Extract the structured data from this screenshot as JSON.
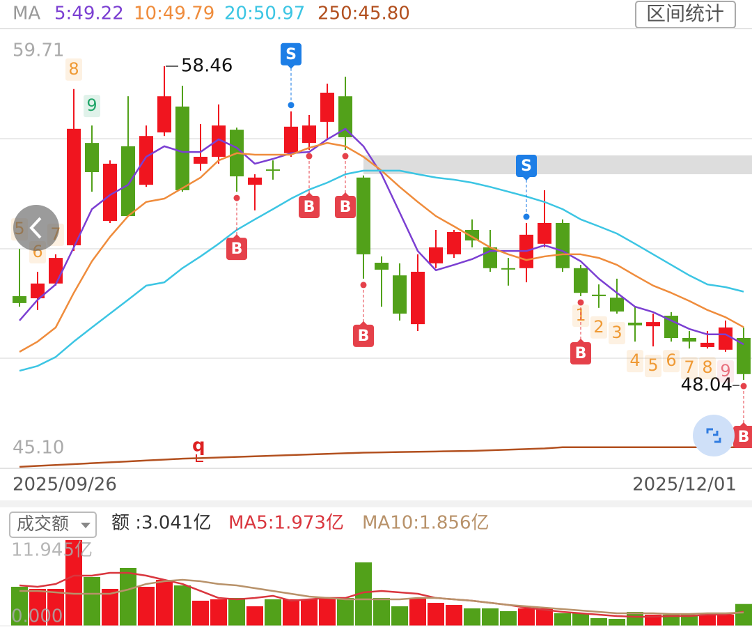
{
  "chart_data": [
    {
      "type": "candlestick",
      "legend_prefix": "MA",
      "button": "区间统计",
      "event_marker": "q",
      "categories": [
        "2025/09/26",
        null,
        null,
        null,
        null,
        null,
        null,
        null,
        null,
        null,
        null,
        null,
        null,
        null,
        null,
        null,
        null,
        null,
        null,
        null,
        null,
        null,
        null,
        null,
        null,
        null,
        null,
        null,
        null,
        null,
        null,
        null,
        null,
        null,
        null,
        null,
        null,
        null,
        null,
        null,
        "2025/12/01"
      ],
      "open": [
        50.82,
        50.75,
        51.24,
        52.51,
        55.91,
        53.32,
        55.8,
        54.52,
        56.26,
        57.12,
        55.22,
        55.45,
        56.35,
        54.52,
        55.03,
        55.57,
        55.91,
        56.61,
        57.46,
        54.76,
        51.93,
        51.51,
        49.89,
        51.91,
        52.21,
        53.02,
        52.44,
        51.75,
        51.75,
        52.56,
        53.25,
        51.75,
        50.87,
        50.77,
        49.94,
        49.82,
        50.17,
        49.43,
        49.13,
        49.04,
        49.43
      ],
      "high": [
        52.39,
        51.63,
        52.21,
        57.7,
        56.49,
        55.33,
        57.46,
        56.49,
        58.46,
        57.81,
        56.54,
        57.19,
        56.42,
        54.87,
        55.33,
        56.96,
        56.84,
        57.88,
        58.11,
        54.83,
        52.14,
        51.91,
        52.21,
        53.02,
        53.02,
        53.37,
        53.02,
        52.09,
        53.25,
        54.34,
        53.37,
        51.86,
        51.21,
        51.4,
        50.47,
        50.24,
        50.29,
        49.66,
        49.66,
        50.01,
        49.78
      ],
      "low": [
        50.47,
        50.36,
        51.17,
        52.32,
        54.29,
        53.25,
        53.48,
        54.45,
        56.14,
        54.29,
        54.99,
        55.22,
        54.29,
        53.67,
        54.69,
        55.45,
        55.68,
        56.03,
        55.68,
        51.4,
        50.47,
        50.01,
        49.66,
        51.75,
        52.09,
        52.44,
        51.63,
        51.17,
        51.28,
        52.44,
        51.63,
        50.82,
        50.43,
        50.24,
        49.31,
        49.15,
        49.31,
        49.08,
        49.08,
        48.97,
        48.04
      ],
      "close": [
        50.59,
        51.24,
        52.09,
        56.38,
        54.94,
        55.22,
        53.48,
        56.14,
        57.46,
        54.34,
        55.45,
        56.49,
        54.8,
        54.76,
        55.02,
        56.45,
        56.49,
        57.58,
        56.1,
        52.21,
        51.7,
        50.24,
        51.63,
        52.44,
        52.95,
        52.67,
        51.75,
        51.74,
        52.86,
        53.25,
        51.75,
        50.93,
        50.82,
        50.31,
        49.85,
        49.96,
        49.43,
        49.31,
        49.27,
        49.78,
        48.23
      ],
      "up_color": "#f0151f",
      "down_color": "#52a11a",
      "ylim": [
        45.1,
        59.71
      ],
      "yticks": [
        {
          "value": 45.1,
          "label": "45.10"
        },
        59.71
      ],
      "series": [
        {
          "name": "5:49.22",
          "color": "#7b3fd2",
          "values": [
            50.01,
            50.7,
            51.21,
            52.44,
            53.71,
            54.18,
            54.52,
            55.45,
            55.8,
            55.61,
            55.61,
            56.03,
            55.75,
            55.22,
            55.38,
            55.57,
            55.61,
            56.03,
            56.38,
            55.8,
            54.87,
            53.6,
            52.32,
            51.68,
            51.86,
            52.05,
            52.32,
            52.32,
            52.32,
            52.51,
            52.32,
            51.98,
            51.4,
            50.93,
            50.47,
            50.29,
            50.01,
            49.73,
            49.55,
            49.55,
            49.22
          ]
        },
        {
          "name": "10:49.79",
          "color": "#ef8c3c",
          "values": [
            48.97,
            49.31,
            49.78,
            50.93,
            51.98,
            52.79,
            53.48,
            53.95,
            54.06,
            54.41,
            54.76,
            55.33,
            55.57,
            55.52,
            55.52,
            55.52,
            55.75,
            55.91,
            55.8,
            55.45,
            54.99,
            54.45,
            53.95,
            53.48,
            53.14,
            52.79,
            52.44,
            52.21,
            52.02,
            52.14,
            52.21,
            52.21,
            52.09,
            51.86,
            51.51,
            51.17,
            50.93,
            50.66,
            50.36,
            50.12,
            49.79
          ]
        },
        {
          "name": "20:50.97",
          "color": "#3cc5e3",
          "values": [
            48.34,
            48.5,
            48.8,
            49.31,
            49.78,
            50.24,
            50.7,
            51.17,
            51.28,
            51.75,
            52.14,
            52.56,
            53.02,
            53.37,
            53.71,
            54.06,
            54.36,
            54.59,
            54.87,
            54.99,
            54.99,
            54.99,
            54.87,
            54.76,
            54.69,
            54.59,
            54.45,
            54.29,
            54.13,
            53.95,
            53.71,
            53.37,
            53.14,
            52.9,
            52.56,
            52.21,
            51.86,
            51.51,
            51.21,
            51.12,
            50.97
          ]
        },
        {
          "name": "250:45.80",
          "color": "#b2501f",
          "values": [
            45.15,
            45.18,
            45.21,
            45.24,
            45.27,
            45.3,
            45.33,
            45.36,
            45.39,
            45.42,
            45.44,
            45.46,
            45.48,
            45.5,
            45.52,
            45.54,
            45.56,
            45.58,
            45.6,
            45.62,
            45.63,
            45.64,
            45.65,
            45.66,
            45.67,
            45.68,
            45.7,
            45.72,
            45.74,
            45.76,
            45.8,
            45.8,
            45.8,
            45.8,
            45.8,
            45.8,
            45.8,
            45.8,
            45.8,
            45.8,
            45.8
          ]
        }
      ],
      "signals": [
        null,
        null,
        null,
        null,
        null,
        null,
        null,
        null,
        null,
        null,
        null,
        null,
        "B",
        null,
        null,
        "S",
        "B",
        null,
        "B",
        "B",
        null,
        null,
        null,
        null,
        null,
        null,
        null,
        null,
        "S",
        null,
        null,
        "B",
        null,
        null,
        null,
        null,
        null,
        null,
        null,
        null,
        "B"
      ],
      "signal_colors": {
        "B": "#e5414a",
        "S": "#1d7ee6"
      },
      "td_counts": [
        5,
        6,
        7,
        8,
        9,
        null,
        null,
        null,
        null,
        null,
        null,
        null,
        null,
        null,
        null,
        null,
        null,
        null,
        null,
        null,
        null,
        null,
        null,
        null,
        null,
        null,
        null,
        null,
        null,
        null,
        null,
        1,
        2,
        3,
        4,
        5,
        6,
        7,
        8,
        9,
        null
      ],
      "td_colors": [
        "#ef9a35",
        "#ef9a35",
        "#ef9a35",
        "#ef9a35",
        "#22a66a",
        null,
        null,
        null,
        null,
        null,
        null,
        null,
        null,
        null,
        null,
        null,
        null,
        null,
        null,
        null,
        null,
        null,
        null,
        null,
        null,
        null,
        null,
        null,
        null,
        null,
        null,
        "#ef9a35",
        "#ef9a35",
        "#ef9a35",
        "#ef9a35",
        "#ef9a35",
        "#ef9a35",
        "#ef9a35",
        "#ef9a35",
        "#e8707e",
        null
      ],
      "max_label": 58.46,
      "min_label": 48.04
    },
    {
      "type": "bar",
      "selector": "成交额",
      "current_label": "额 :3.041亿",
      "values": [
        5.44,
        5.15,
        5.15,
        11.945,
        6.8,
        5.15,
        8.06,
        5.44,
        6.41,
        5.63,
        3.5,
        3.69,
        3.88,
        2.72,
        3.69,
        3.69,
        3.69,
        3.88,
        3.88,
        8.84,
        3.88,
        2.72,
        3.88,
        3.2,
        2.91,
        2.43,
        2.43,
        2.04,
        2.43,
        2.43,
        1.75,
        1.75,
        1.07,
        0.97,
        1.94,
        1.55,
        1.55,
        1.55,
        1.55,
        1.55,
        3.041
      ],
      "ylim": [
        0,
        11.945
      ],
      "yticks": [
        {
          "value": 0,
          "label": "0.000"
        },
        {
          "value": 11.945,
          "label": "11.945亿"
        }
      ],
      "series": [
        {
          "name": "MA5:1.973亿",
          "color": "#d9363e",
          "values": [
            5.63,
            5.44,
            5.83,
            6.99,
            6.99,
            7.38,
            7.38,
            6.99,
            6.41,
            5.83,
            4.86,
            3.88,
            3.69,
            3.88,
            4.18,
            3.5,
            3.69,
            3.88,
            3.88,
            4.66,
            4.86,
            4.66,
            4.47,
            3.88,
            3.69,
            3.5,
            3.2,
            2.91,
            2.52,
            2.23,
            1.94,
            1.75,
            1.55,
            1.36,
            1.26,
            1.26,
            1.36,
            1.36,
            1.55,
            1.55,
            1.973
          ]
        },
        {
          "name": "MA10:1.856亿",
          "color": "#b8926a",
          "values": [
            4.86,
            4.86,
            4.66,
            4.47,
            4.47,
            4.47,
            5.05,
            5.83,
            6.21,
            6.41,
            6.21,
            5.83,
            5.63,
            5.24,
            4.86,
            4.47,
            4.08,
            3.88,
            3.69,
            3.69,
            3.69,
            3.69,
            3.88,
            3.88,
            3.69,
            3.5,
            3.2,
            2.91,
            2.72,
            2.52,
            2.33,
            2.14,
            1.94,
            1.75,
            1.75,
            1.75,
            1.65,
            1.65,
            1.75,
            1.75,
            1.856
          ]
        }
      ]
    }
  ]
}
